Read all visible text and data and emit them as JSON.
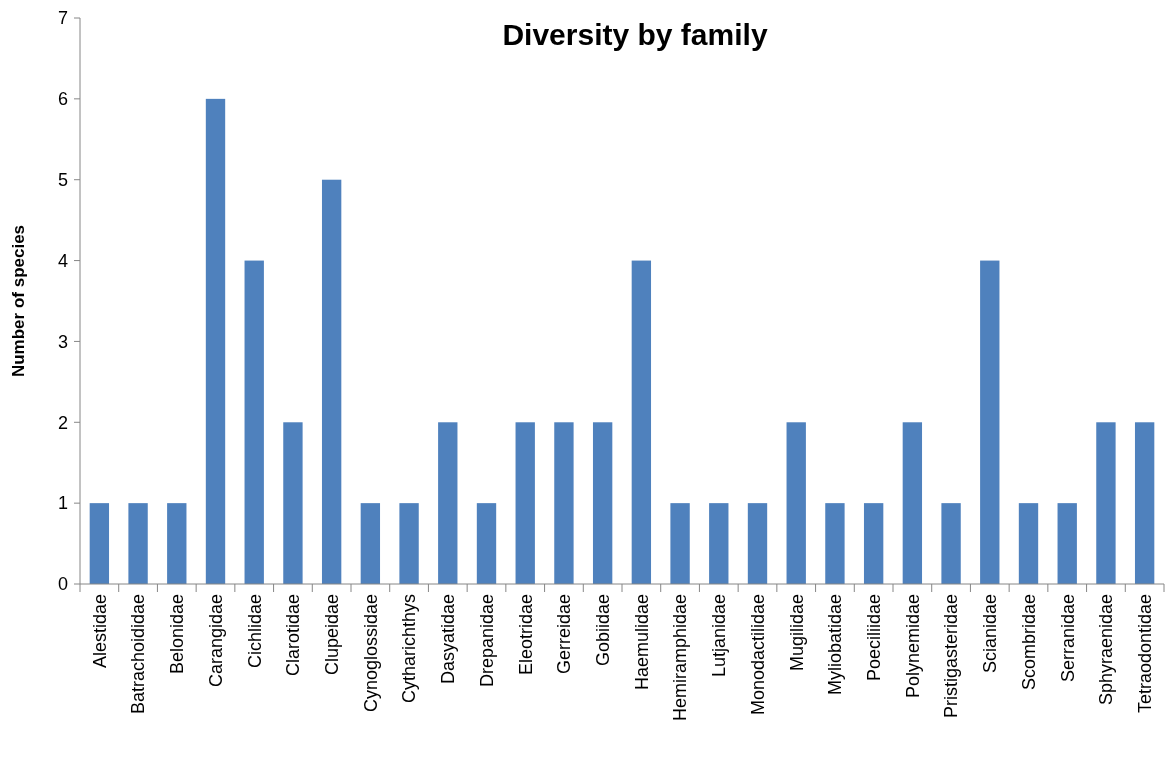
{
  "chart_data": {
    "type": "bar",
    "title": "Diversity by family",
    "ylabel": "Number of species",
    "categories": [
      "Alestidae",
      "Batrachoididae",
      "Belonidae",
      "Carangidae",
      "Cichlidae",
      "Clarotidae",
      "Clupeidae",
      "Cynoglossidae",
      "Cytharichthys",
      "Dasyatidae",
      "Drepanidae",
      "Eleotridae",
      "Gerreidae",
      "Gobiidae",
      "Haemulidae",
      "Hemiramphidae",
      "Lutjanidae",
      "Monodactilidae",
      "Mugilidae",
      "Myliobatidae",
      "Poeciliidae",
      "Polynemidae",
      "Pristigasteridae",
      "Scianidae",
      "Scombridae",
      "Serranidae",
      "Sphyraenidae",
      "Tetraodontidae"
    ],
    "values": [
      1,
      1,
      1,
      6,
      4,
      2,
      5,
      1,
      1,
      2,
      1,
      2,
      2,
      2,
      4,
      1,
      1,
      1,
      2,
      1,
      1,
      2,
      1,
      4,
      1,
      1,
      2,
      2
    ],
    "color": "#4f81bd",
    "ylim": [
      0,
      7
    ],
    "yticks": [
      0,
      1,
      2,
      3,
      4,
      5,
      6,
      7
    ],
    "grid": false
  }
}
